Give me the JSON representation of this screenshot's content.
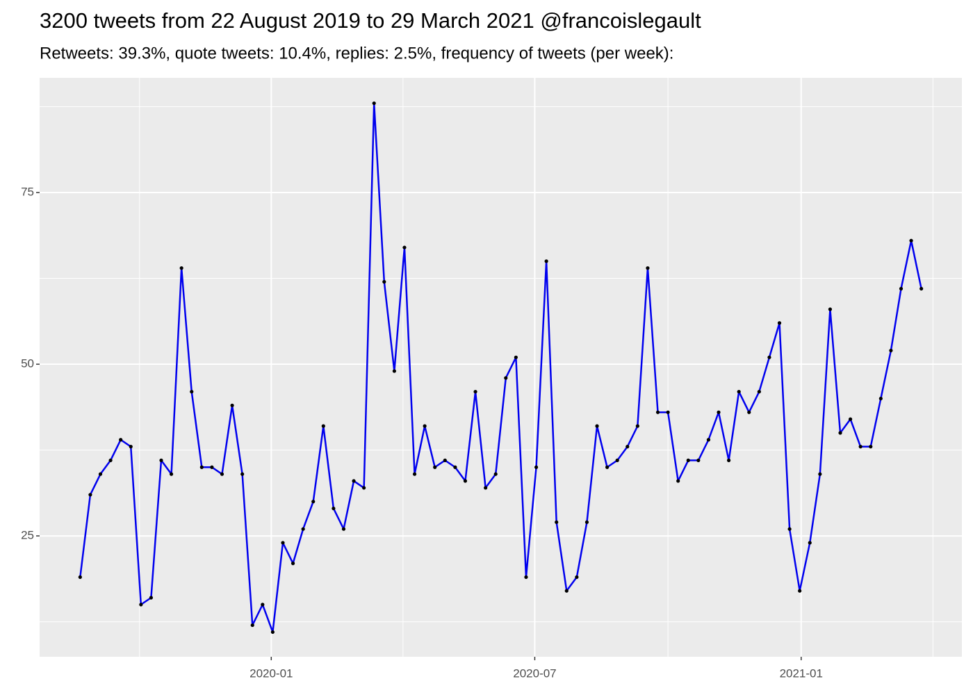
{
  "chart_data": {
    "type": "line",
    "title": "3200 tweets from 22 August 2019 to 29 March 2021 @francoislegault",
    "subtitle": "Retweets: 39.3%, quote tweets: 10.4%, replies: 2.5%, frequency of tweets (per week):",
    "x": [
      "2019-08-22",
      "2019-08-29",
      "2019-09-05",
      "2019-09-12",
      "2019-09-19",
      "2019-09-26",
      "2019-10-03",
      "2019-10-10",
      "2019-10-17",
      "2019-10-24",
      "2019-10-31",
      "2019-11-07",
      "2019-11-14",
      "2019-11-21",
      "2019-11-28",
      "2019-12-05",
      "2019-12-12",
      "2019-12-19",
      "2019-12-26",
      "2020-01-02",
      "2020-01-09",
      "2020-01-16",
      "2020-01-23",
      "2020-01-30",
      "2020-02-06",
      "2020-02-13",
      "2020-02-20",
      "2020-02-27",
      "2020-03-05",
      "2020-03-12",
      "2020-03-19",
      "2020-03-26",
      "2020-04-02",
      "2020-04-09",
      "2020-04-16",
      "2020-04-23",
      "2020-04-30",
      "2020-05-07",
      "2020-05-14",
      "2020-05-21",
      "2020-05-28",
      "2020-06-04",
      "2020-06-11",
      "2020-06-18",
      "2020-06-25",
      "2020-07-02",
      "2020-07-09",
      "2020-07-16",
      "2020-07-23",
      "2020-07-30",
      "2020-08-06",
      "2020-08-13",
      "2020-08-20",
      "2020-08-27",
      "2020-09-03",
      "2020-09-10",
      "2020-09-17",
      "2020-09-24",
      "2020-10-01",
      "2020-10-08",
      "2020-10-15",
      "2020-10-22",
      "2020-10-29",
      "2020-11-05",
      "2020-11-12",
      "2020-11-19",
      "2020-11-26",
      "2020-12-03",
      "2020-12-10",
      "2020-12-17",
      "2020-12-24",
      "2020-12-31",
      "2021-01-07",
      "2021-01-14",
      "2021-01-21",
      "2021-01-28",
      "2021-02-04",
      "2021-02-11",
      "2021-02-18",
      "2021-02-25",
      "2021-03-04",
      "2021-03-11",
      "2021-03-18",
      "2021-03-25"
    ],
    "series": [
      {
        "color": "#0000ee",
        "values": [
          19,
          31,
          34,
          36,
          39,
          38,
          15,
          16,
          36,
          34,
          64,
          46,
          35,
          35,
          34,
          44,
          34,
          12,
          15,
          11,
          24,
          21,
          26,
          30,
          41,
          29,
          26,
          33,
          32,
          88,
          62,
          49,
          67,
          34,
          41,
          35,
          36,
          35,
          33,
          46,
          32,
          34,
          48,
          51,
          19,
          35,
          65,
          27,
          17,
          19,
          27,
          41,
          35,
          36,
          38,
          41,
          64,
          43,
          43,
          33,
          36,
          36,
          39,
          43,
          36,
          46,
          43,
          46,
          51,
          56,
          26,
          17,
          24,
          34,
          58,
          40,
          42,
          38,
          38,
          45,
          52,
          61,
          68,
          61
        ]
      }
    ],
    "point_color": "#000000",
    "xlim": [
      "2019-07-25",
      "2021-04-22"
    ],
    "xticks": [
      {
        "value": "2020-01-01",
        "label": "2020-01"
      },
      {
        "value": "2020-07-01",
        "label": "2020-07"
      },
      {
        "value": "2021-01-01",
        "label": "2021-01"
      }
    ],
    "ylim": [
      7.4,
      91.7
    ],
    "yticks": [
      25,
      50,
      75
    ],
    "grid": true
  }
}
